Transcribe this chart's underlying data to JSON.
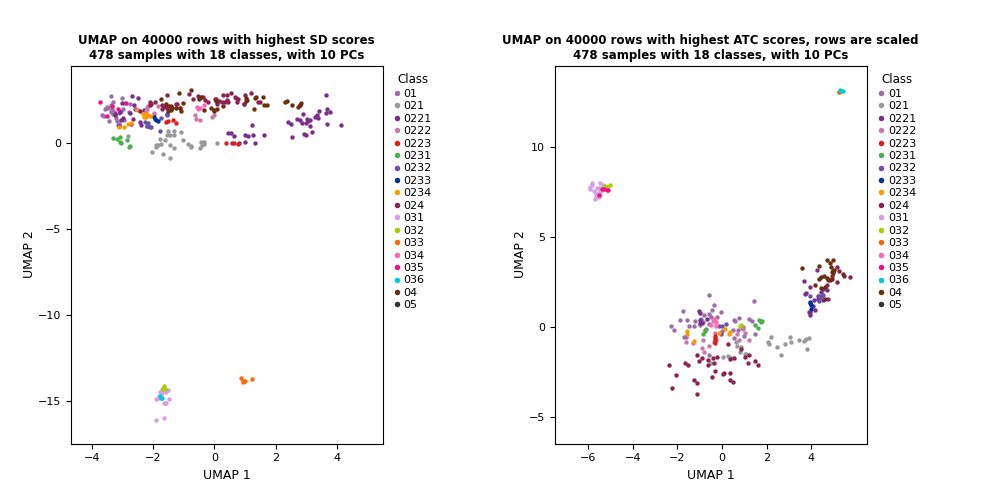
{
  "title1": "UMAP on 40000 rows with highest SD scores\n478 samples with 18 classes, with 10 PCs",
  "title2": "UMAP on 40000 rows with highest ATC scores, rows are scaled\n478 samples with 18 classes, with 10 PCs",
  "xlabel": "UMAP 1",
  "ylabel": "UMAP 2",
  "classes": [
    "01",
    "021",
    "0221",
    "0222",
    "0223",
    "0231",
    "0232",
    "0233",
    "0234",
    "024",
    "031",
    "032",
    "033",
    "034",
    "035",
    "036",
    "04",
    "05"
  ],
  "colors": {
    "01": "#9970AB",
    "021": "#999999",
    "0221": "#7B2D8B",
    "0222": "#CC79A7",
    "0223": "#E41A1C",
    "0231": "#4DAF4A",
    "0232": "#6A51A3",
    "0233": "#003399",
    "0234": "#FF9900",
    "024": "#8B2252",
    "031": "#D4A0E0",
    "032": "#AACC00",
    "033": "#FF6600",
    "034": "#FF69B4",
    "035": "#EE1289",
    "036": "#00CCDD",
    "04": "#6B2D0A",
    "05": "#333333"
  },
  "xlim1": [
    -4.7,
    5.5
  ],
  "ylim1": [
    -17.5,
    4.5
  ],
  "xlim2": [
    -7.5,
    6.5
  ],
  "ylim2": [
    -6.5,
    14.5
  ],
  "xticks1": [
    -4,
    -2,
    0,
    2,
    4
  ],
  "yticks1": [
    -15,
    -10,
    -5,
    0
  ],
  "xticks2": [
    -6,
    -4,
    -2,
    0,
    2,
    4
  ],
  "yticks2": [
    -5,
    0,
    5,
    10
  ],
  "marker_size": 10
}
